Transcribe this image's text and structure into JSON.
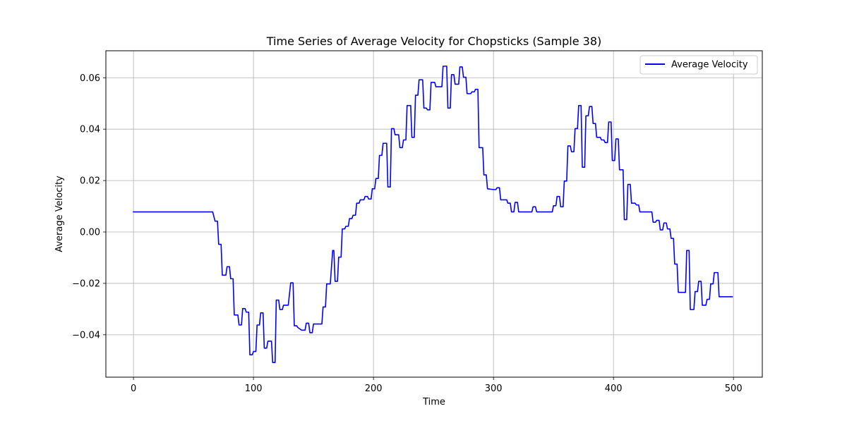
{
  "chart_data": {
    "type": "line",
    "title": "Time Series of Average Velocity for Chopsticks (Sample 38)",
    "xlabel": "Time",
    "ylabel": "Average Velocity",
    "xlim": [
      -23,
      524
    ],
    "ylim": [
      -0.0565,
      0.0705
    ],
    "xticks": [
      0,
      100,
      200,
      300,
      400,
      500
    ],
    "xtick_labels": [
      "0",
      "100",
      "200",
      "300",
      "400",
      "500"
    ],
    "yticks": [
      -0.04,
      -0.02,
      0.0,
      0.02,
      0.04,
      0.06
    ],
    "ytick_labels": [
      "−0.04",
      "−0.02",
      "0.00",
      "0.02",
      "0.04",
      "0.06"
    ],
    "grid": true,
    "legend_position": "top-right",
    "series": [
      {
        "name": "Average Velocity",
        "color": "#0000ff",
        "points": [
          [
            0,
            0.0078
          ],
          [
            66,
            0.0078
          ],
          [
            68,
            0.0042
          ],
          [
            70,
            0.0042
          ],
          [
            71,
            -0.0048
          ],
          [
            73,
            -0.0048
          ],
          [
            74,
            -0.0168
          ],
          [
            77,
            -0.0168
          ],
          [
            78,
            -0.0135
          ],
          [
            80,
            -0.0135
          ],
          [
            81,
            -0.0182
          ],
          [
            83,
            -0.0182
          ],
          [
            84,
            -0.0323
          ],
          [
            87,
            -0.0323
          ],
          [
            88,
            -0.0362
          ],
          [
            90,
            -0.0362
          ],
          [
            91,
            -0.0298
          ],
          [
            93,
            -0.0298
          ],
          [
            94,
            -0.0312
          ],
          [
            96,
            -0.0312
          ],
          [
            97,
            -0.0478
          ],
          [
            99,
            -0.0478
          ],
          [
            100,
            -0.0465
          ],
          [
            102,
            -0.0465
          ],
          [
            103,
            -0.0362
          ],
          [
            105,
            -0.0362
          ],
          [
            106,
            -0.0315
          ],
          [
            108,
            -0.0315
          ],
          [
            109,
            -0.0452
          ],
          [
            111,
            -0.0452
          ],
          [
            112,
            -0.0425
          ],
          [
            115,
            -0.0425
          ],
          [
            116,
            -0.0508
          ],
          [
            118,
            -0.0508
          ],
          [
            119,
            -0.0265
          ],
          [
            121,
            -0.0265
          ],
          [
            122,
            -0.0302
          ],
          [
            124,
            -0.0302
          ],
          [
            125,
            -0.0285
          ],
          [
            129,
            -0.0285
          ],
          [
            131,
            -0.0198
          ],
          [
            133,
            -0.0198
          ],
          [
            134,
            -0.0365
          ],
          [
            136,
            -0.0365
          ],
          [
            137,
            -0.0372
          ],
          [
            140,
            -0.0382
          ],
          [
            143,
            -0.0382
          ],
          [
            144,
            -0.0355
          ],
          [
            146,
            -0.0355
          ],
          [
            147,
            -0.0392
          ],
          [
            149,
            -0.0392
          ],
          [
            150,
            -0.0358
          ],
          [
            157,
            -0.0358
          ],
          [
            158,
            -0.0292
          ],
          [
            160,
            -0.0292
          ],
          [
            161,
            -0.0202
          ],
          [
            164,
            -0.0202
          ],
          [
            166,
            -0.0072
          ],
          [
            167,
            -0.0072
          ],
          [
            168,
            -0.0192
          ],
          [
            170,
            -0.0192
          ],
          [
            171,
            -0.0098
          ],
          [
            173,
            -0.0098
          ],
          [
            174,
            0.0012
          ],
          [
            176,
            0.0012
          ],
          [
            177,
            0.0022
          ],
          [
            179,
            0.0022
          ],
          [
            180,
            0.0052
          ],
          [
            182,
            0.0052
          ],
          [
            183,
            0.0065
          ],
          [
            185,
            0.0065
          ],
          [
            186,
            0.0112
          ],
          [
            188,
            0.0112
          ],
          [
            189,
            0.0125
          ],
          [
            192,
            0.0125
          ],
          [
            193,
            0.0138
          ],
          [
            195,
            0.0138
          ],
          [
            196,
            0.0128
          ],
          [
            198,
            0.0128
          ],
          [
            199,
            0.0168
          ],
          [
            201,
            0.0168
          ],
          [
            202,
            0.0208
          ],
          [
            204,
            0.0208
          ],
          [
            205,
            0.0298
          ],
          [
            207,
            0.0298
          ],
          [
            208,
            0.0345
          ],
          [
            211,
            0.0345
          ],
          [
            212,
            0.0175
          ],
          [
            214,
            0.0175
          ],
          [
            215,
            0.0402
          ],
          [
            217,
            0.0402
          ],
          [
            218,
            0.0378
          ],
          [
            221,
            0.0378
          ],
          [
            222,
            0.0328
          ],
          [
            224,
            0.0328
          ],
          [
            225,
            0.0358
          ],
          [
            227,
            0.0358
          ],
          [
            228,
            0.0492
          ],
          [
            231,
            0.0492
          ],
          [
            232,
            0.0368
          ],
          [
            234,
            0.0368
          ],
          [
            235,
            0.0532
          ],
          [
            237,
            0.0532
          ],
          [
            238,
            0.0592
          ],
          [
            241,
            0.0592
          ],
          [
            242,
            0.0482
          ],
          [
            244,
            0.0482
          ],
          [
            245,
            0.0475
          ],
          [
            247,
            0.0475
          ],
          [
            248,
            0.0582
          ],
          [
            251,
            0.0582
          ],
          [
            252,
            0.0565
          ],
          [
            257,
            0.0565
          ],
          [
            258,
            0.0645
          ],
          [
            261,
            0.0645
          ],
          [
            262,
            0.0482
          ],
          [
            264,
            0.0482
          ],
          [
            265,
            0.0612
          ],
          [
            267,
            0.0612
          ],
          [
            268,
            0.0575
          ],
          [
            271,
            0.0575
          ],
          [
            272,
            0.0642
          ],
          [
            274,
            0.0642
          ],
          [
            275,
            0.0602
          ],
          [
            277,
            0.0602
          ],
          [
            278,
            0.0538
          ],
          [
            281,
            0.0538
          ],
          [
            282,
            0.0545
          ],
          [
            284,
            0.0545
          ],
          [
            285,
            0.0555
          ],
          [
            287,
            0.0555
          ],
          [
            288,
            0.0328
          ],
          [
            291,
            0.0328
          ],
          [
            292,
            0.0222
          ],
          [
            294,
            0.0222
          ],
          [
            295,
            0.0168
          ],
          [
            300,
            0.0165
          ],
          [
            302,
            0.0165
          ],
          [
            303,
            0.0172
          ],
          [
            305,
            0.0172
          ],
          [
            306,
            0.0125
          ],
          [
            311,
            0.0125
          ],
          [
            312,
            0.0112
          ],
          [
            314,
            0.0112
          ],
          [
            315,
            0.0078
          ],
          [
            317,
            0.0078
          ],
          [
            318,
            0.0115
          ],
          [
            320,
            0.0115
          ],
          [
            321,
            0.0078
          ],
          [
            332,
            0.0078
          ],
          [
            333,
            0.0098
          ],
          [
            335,
            0.0098
          ],
          [
            336,
            0.0078
          ],
          [
            349,
            0.0078
          ],
          [
            350,
            0.0102
          ],
          [
            352,
            0.0102
          ],
          [
            353,
            0.0138
          ],
          [
            355,
            0.0138
          ],
          [
            356,
            0.0098
          ],
          [
            358,
            0.0098
          ],
          [
            359,
            0.0198
          ],
          [
            361,
            0.0198
          ],
          [
            362,
            0.0335
          ],
          [
            364,
            0.0335
          ],
          [
            365,
            0.0312
          ],
          [
            367,
            0.0312
          ],
          [
            368,
            0.0402
          ],
          [
            370,
            0.0402
          ],
          [
            371,
            0.0492
          ],
          [
            373,
            0.0492
          ],
          [
            374,
            0.0252
          ],
          [
            376,
            0.0252
          ],
          [
            377,
            0.0452
          ],
          [
            379,
            0.0452
          ],
          [
            380,
            0.0488
          ],
          [
            382,
            0.0488
          ],
          [
            383,
            0.0422
          ],
          [
            385,
            0.0422
          ],
          [
            386,
            0.0368
          ],
          [
            389,
            0.0368
          ],
          [
            390,
            0.0358
          ],
          [
            392,
            0.0358
          ],
          [
            393,
            0.0348
          ],
          [
            395,
            0.0348
          ],
          [
            396,
            0.0428
          ],
          [
            398,
            0.0428
          ],
          [
            399,
            0.0278
          ],
          [
            401,
            0.0278
          ],
          [
            402,
            0.0362
          ],
          [
            404,
            0.0362
          ],
          [
            405,
            0.0242
          ],
          [
            408,
            0.0242
          ],
          [
            409,
            0.0048
          ],
          [
            411,
            0.0048
          ],
          [
            412,
            0.0185
          ],
          [
            414,
            0.0185
          ],
          [
            415,
            0.0112
          ],
          [
            418,
            0.0112
          ],
          [
            419,
            0.0105
          ],
          [
            421,
            0.0105
          ],
          [
            422,
            0.0078
          ],
          [
            432,
            0.0078
          ],
          [
            433,
            0.0038
          ],
          [
            435,
            0.0038
          ],
          [
            436,
            0.0045
          ],
          [
            438,
            0.0045
          ],
          [
            439,
            0.0008
          ],
          [
            441,
            0.0008
          ],
          [
            442,
            0.0035
          ],
          [
            444,
            0.0035
          ],
          [
            445,
            0.0012
          ],
          [
            447,
            0.0012
          ],
          [
            448,
            -0.0025
          ],
          [
            450,
            -0.0025
          ],
          [
            451,
            -0.0125
          ],
          [
            453,
            -0.0125
          ],
          [
            454,
            -0.0235
          ],
          [
            460,
            -0.0235
          ],
          [
            461,
            -0.0072
          ],
          [
            463,
            -0.0072
          ],
          [
            464,
            -0.0302
          ],
          [
            467,
            -0.0302
          ],
          [
            468,
            -0.0232
          ],
          [
            470,
            -0.0232
          ],
          [
            471,
            -0.0192
          ],
          [
            473,
            -0.0192
          ],
          [
            474,
            -0.0285
          ],
          [
            477,
            -0.0285
          ],
          [
            478,
            -0.0262
          ],
          [
            480,
            -0.0262
          ],
          [
            481,
            -0.0202
          ],
          [
            483,
            -0.0202
          ],
          [
            484,
            -0.0158
          ],
          [
            487,
            -0.0158
          ],
          [
            488,
            -0.0252
          ],
          [
            499,
            -0.0252
          ]
        ]
      }
    ]
  }
}
